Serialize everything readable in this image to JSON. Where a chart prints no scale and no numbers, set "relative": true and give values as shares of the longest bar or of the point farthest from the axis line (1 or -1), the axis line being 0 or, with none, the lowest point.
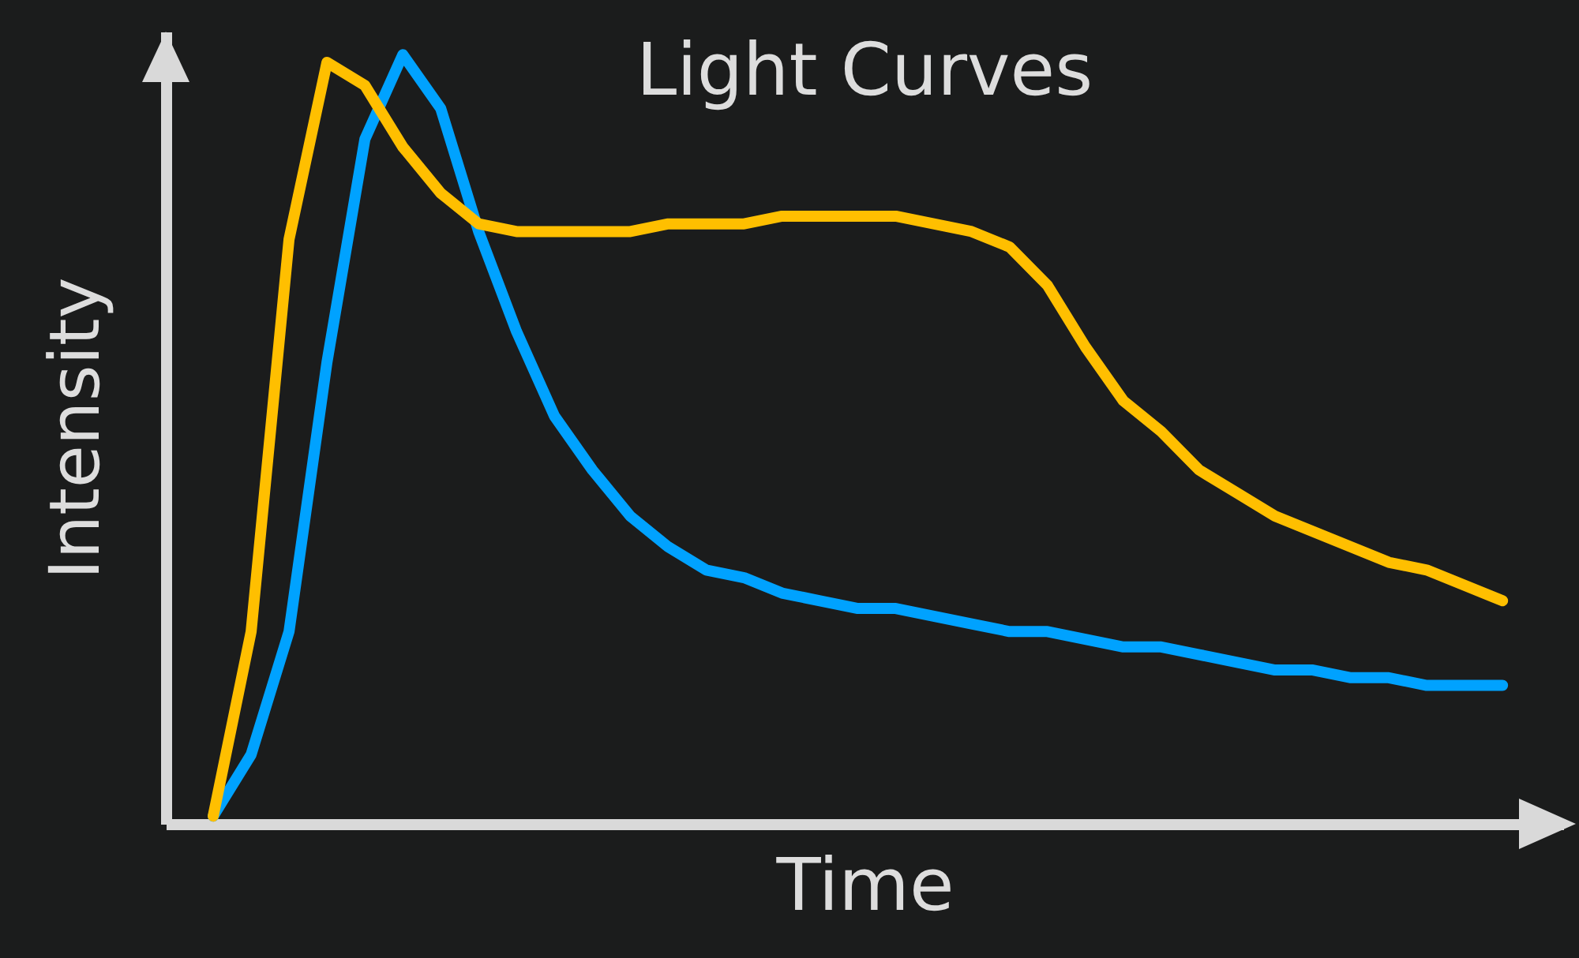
{
  "chart_data": {
    "type": "line",
    "title": "Light Curves",
    "xlabel": "Time",
    "ylabel": "Intensity",
    "relative": true,
    "categories": [
      null,
      null,
      null,
      null,
      null,
      null,
      null,
      null,
      null,
      null,
      null,
      null,
      null,
      null,
      null,
      null,
      null,
      null,
      null,
      null,
      null,
      null,
      null,
      null,
      null,
      null,
      null,
      null,
      null,
      null,
      null,
      null,
      null,
      null,
      null
    ],
    "series": [
      {
        "color": "#00a2ff",
        "values": [
          0.01,
          0.09,
          0.25,
          0.6,
          0.89,
          1,
          0.93,
          0.77,
          0.64,
          0.53,
          0.46,
          0.4,
          0.36,
          0.33,
          0.32,
          0.3,
          0.29,
          0.28,
          0.28,
          0.27,
          0.26,
          0.25,
          0.25,
          0.24,
          0.23,
          0.23,
          0.22,
          0.21,
          0.2,
          0.2,
          0.19,
          0.19,
          0.18,
          0.18,
          0.18
        ]
      },
      {
        "color": "#ffbf00",
        "values": [
          0.01,
          0.25,
          0.76,
          0.99,
          0.96,
          0.88,
          0.82,
          0.78,
          0.77,
          0.77,
          0.77,
          0.77,
          0.78,
          0.78,
          0.78,
          0.79,
          0.79,
          0.79,
          0.79,
          0.78,
          0.77,
          0.75,
          0.7,
          0.62,
          0.55,
          0.51,
          0.46,
          0.43,
          0.4,
          0.38,
          0.36,
          0.34,
          0.33,
          0.31,
          0.29
        ]
      }
    ]
  }
}
